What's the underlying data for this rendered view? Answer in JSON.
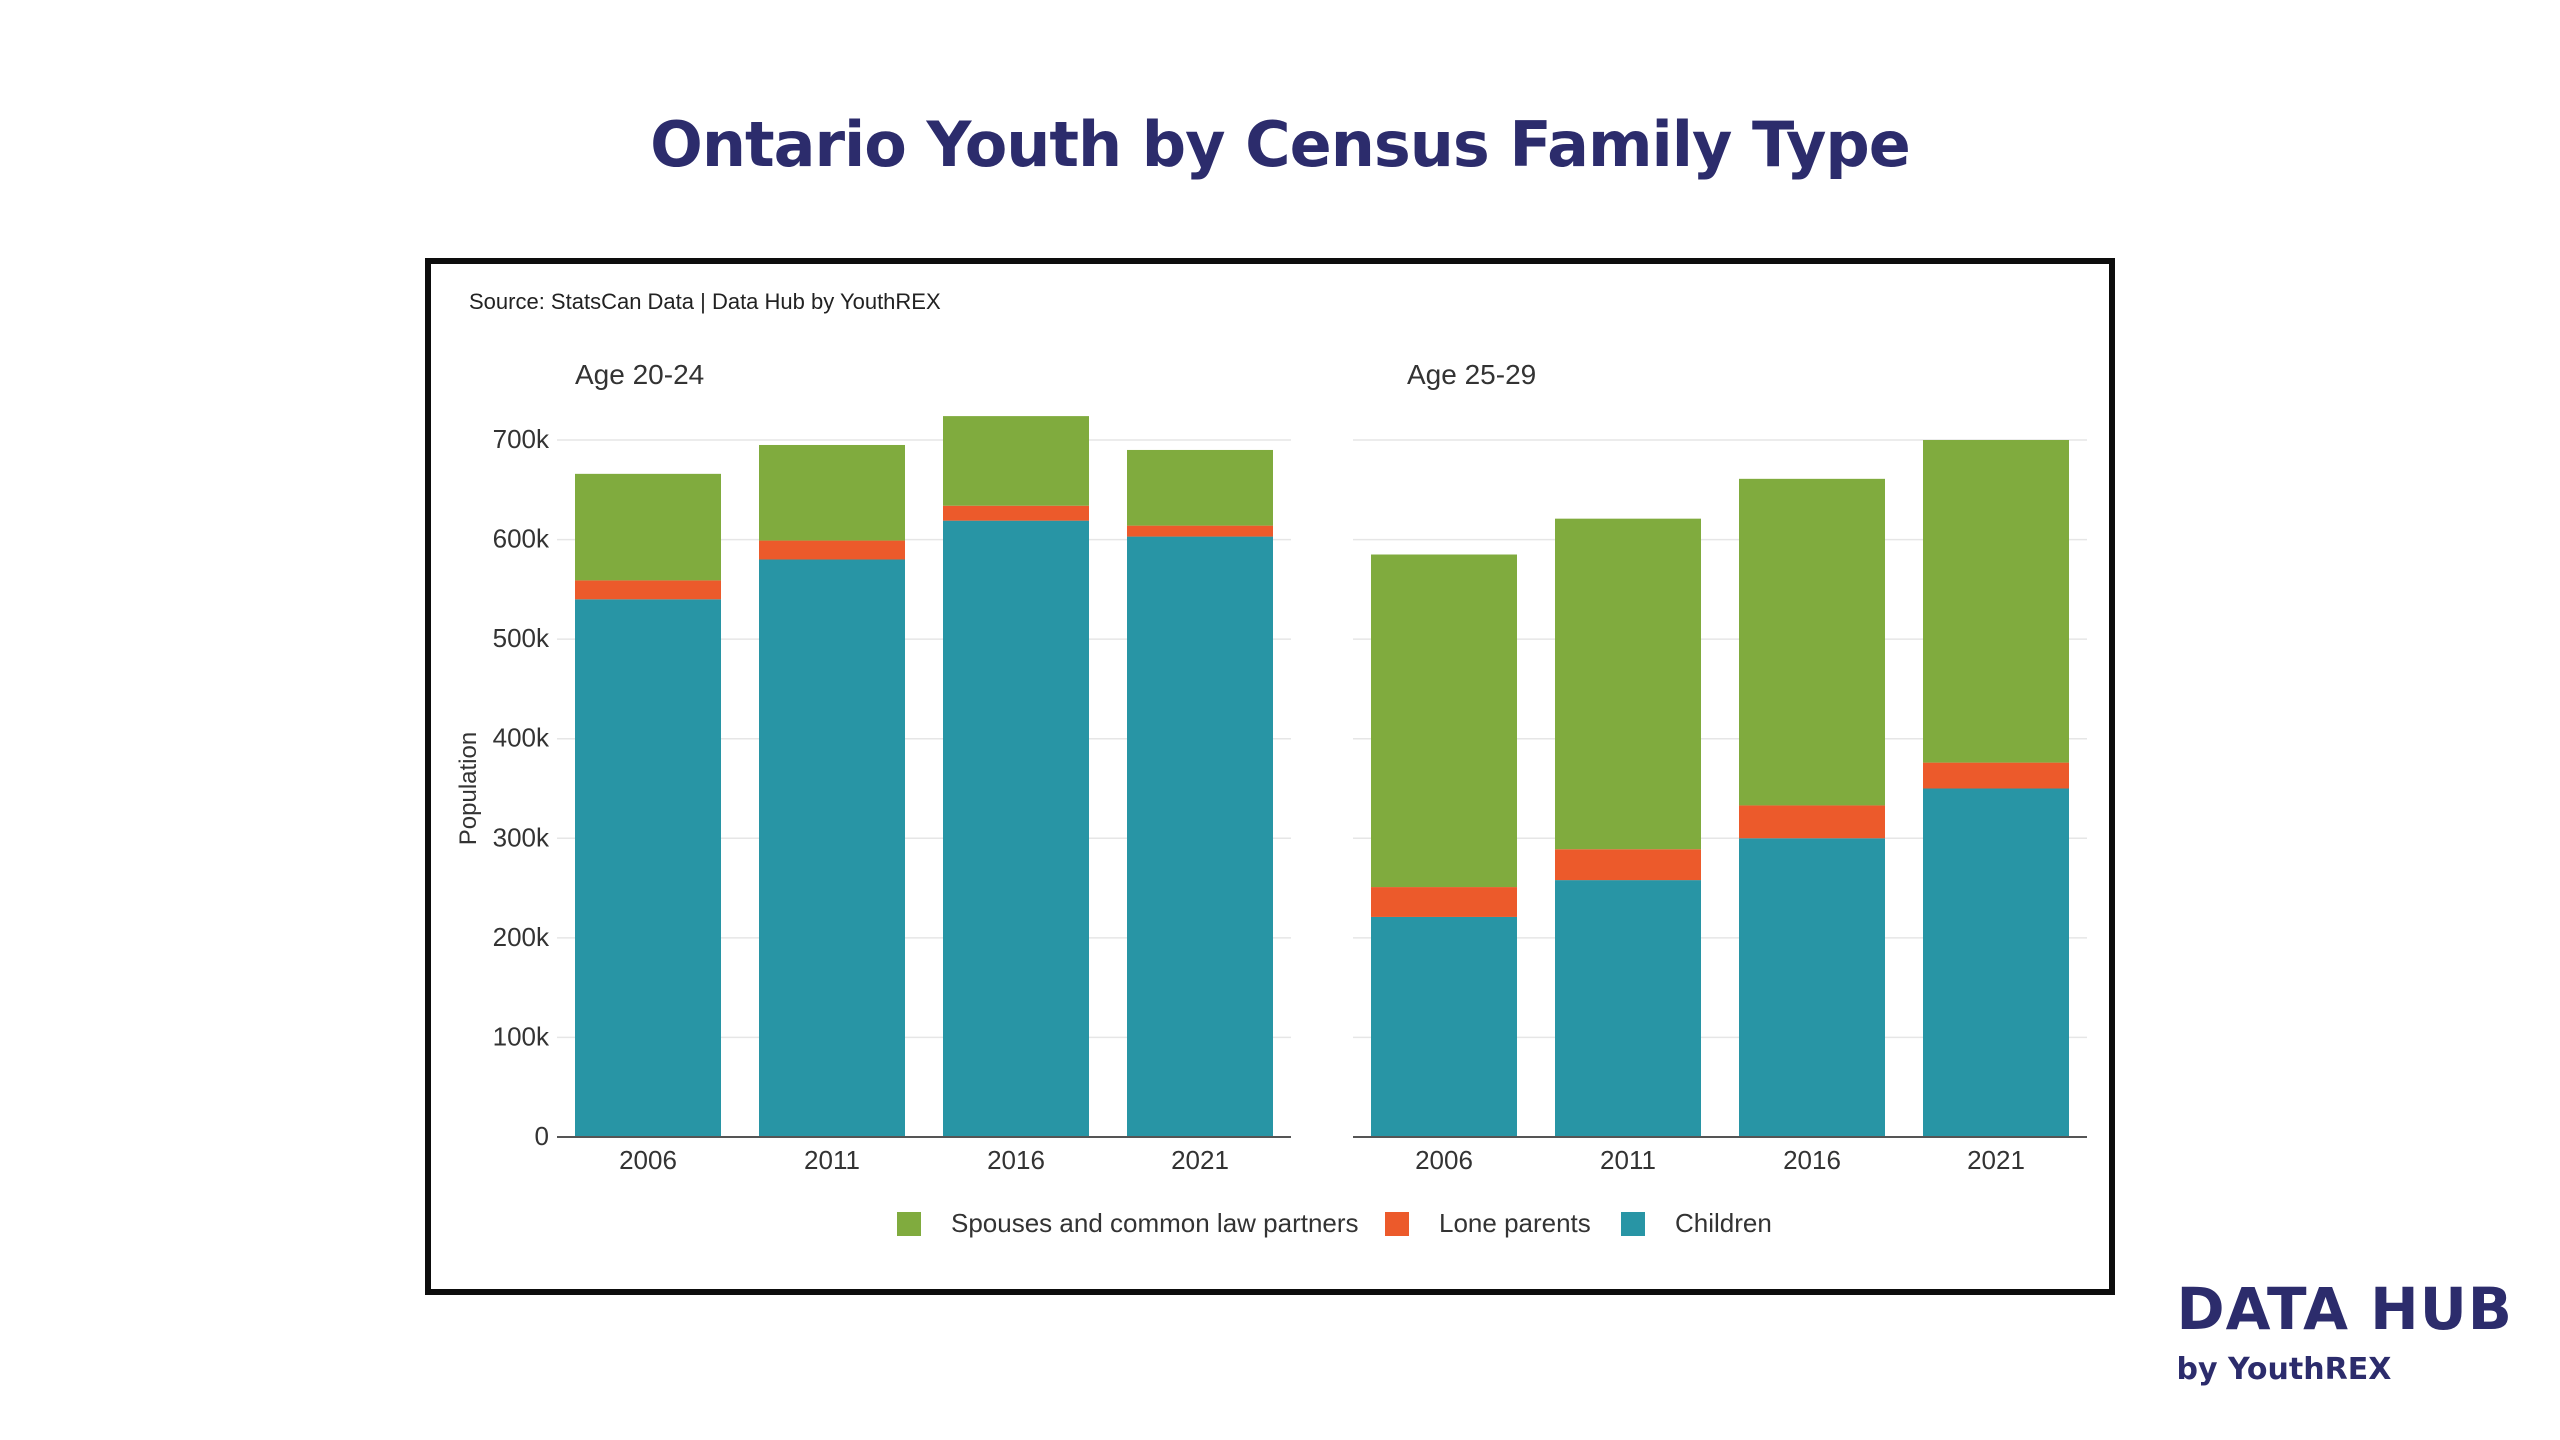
{
  "page": {
    "title": "Ontario Youth by Census Family Type"
  },
  "brand": {
    "name": "DATA HUB",
    "sub": "by YouthREX",
    "color": "#2c2c6c"
  },
  "chart_data": {
    "type": "bar",
    "stacked": true,
    "source": "Source: StatsCan Data | Data Hub by YouthREX",
    "ylabel": "Population",
    "ylim": [
      0,
      700000
    ],
    "yticks": [
      {
        "value": 0,
        "label": "0"
      },
      {
        "value": 100000,
        "label": "100k"
      },
      {
        "value": 200000,
        "label": "200k"
      },
      {
        "value": 300000,
        "label": "300k"
      },
      {
        "value": 400000,
        "label": "400k"
      },
      {
        "value": 500000,
        "label": "500k"
      },
      {
        "value": 600000,
        "label": "600k"
      },
      {
        "value": 700000,
        "label": "700k"
      }
    ],
    "grid": true,
    "legend_position": "bottom",
    "legend": [
      {
        "name": "Spouses and common law partners",
        "color": "#80ab3e"
      },
      {
        "name": "Lone parents",
        "color": "#ec5a2b"
      },
      {
        "name": "Children",
        "color": "#2895a5"
      }
    ],
    "panels": [
      {
        "label": "Age 20-24",
        "categories": [
          "2006",
          "2011",
          "2016",
          "2021"
        ],
        "series": [
          {
            "name": "Children",
            "color": "#2895a5",
            "values": [
              540000,
              580000,
              619000,
              603000
            ]
          },
          {
            "name": "Lone parents",
            "color": "#ec5a2b",
            "values": [
              19000,
              19000,
              15000,
              11000
            ]
          },
          {
            "name": "Spouses and common law partners",
            "color": "#80ab3e",
            "values": [
              107000,
              96000,
              90000,
              76000
            ]
          }
        ]
      },
      {
        "label": "Age 25-29",
        "categories": [
          "2006",
          "2011",
          "2016",
          "2021"
        ],
        "series": [
          {
            "name": "Children",
            "color": "#2895a5",
            "values": [
              221000,
              258000,
              300000,
              350000
            ]
          },
          {
            "name": "Lone parents",
            "color": "#ec5a2b",
            "values": [
              30000,
              31000,
              33000,
              26000
            ]
          },
          {
            "name": "Spouses and common law partners",
            "color": "#80ab3e",
            "values": [
              334000,
              332000,
              328000,
              324000
            ]
          }
        ]
      }
    ]
  }
}
